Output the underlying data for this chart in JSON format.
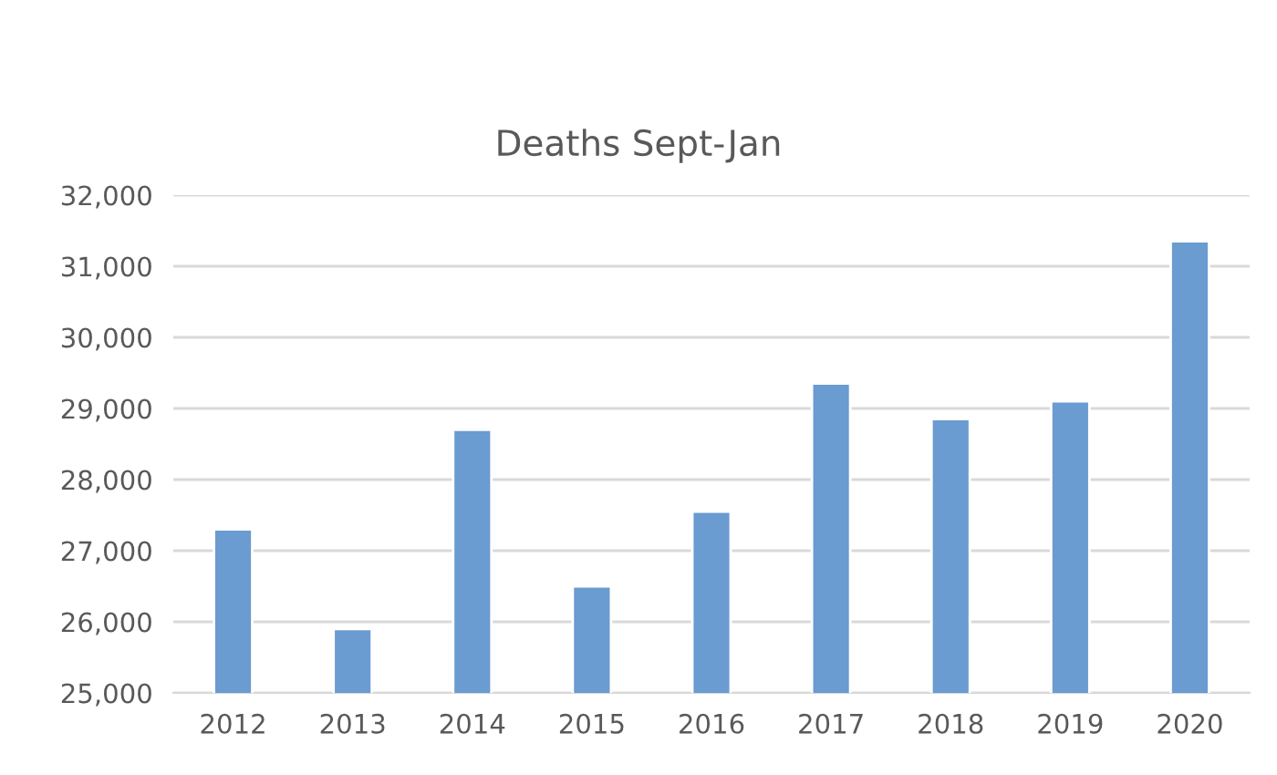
{
  "chart_data": {
    "type": "bar",
    "title": "Deaths Sept-Jan",
    "categories": [
      "2012",
      "2013",
      "2014",
      "2015",
      "2016",
      "2017",
      "2018",
      "2019",
      "2020"
    ],
    "values": [
      27300,
      25900,
      28700,
      26500,
      27550,
      29350,
      28850,
      29100,
      31350
    ],
    "color": "#6a9bd1",
    "ylim": [
      25000,
      32000
    ],
    "yticks": [
      {
        "value": 25000,
        "label": "25,000"
      },
      {
        "value": 26000,
        "label": "26,000"
      },
      {
        "value": 27000,
        "label": "27,000"
      },
      {
        "value": 28000,
        "label": "28,000"
      },
      {
        "value": 29000,
        "label": "29,000"
      },
      {
        "value": 30000,
        "label": "30,000"
      },
      {
        "value": 31000,
        "label": "31,000"
      },
      {
        "value": 32000,
        "label": "32,000"
      }
    ],
    "grid": "y"
  }
}
